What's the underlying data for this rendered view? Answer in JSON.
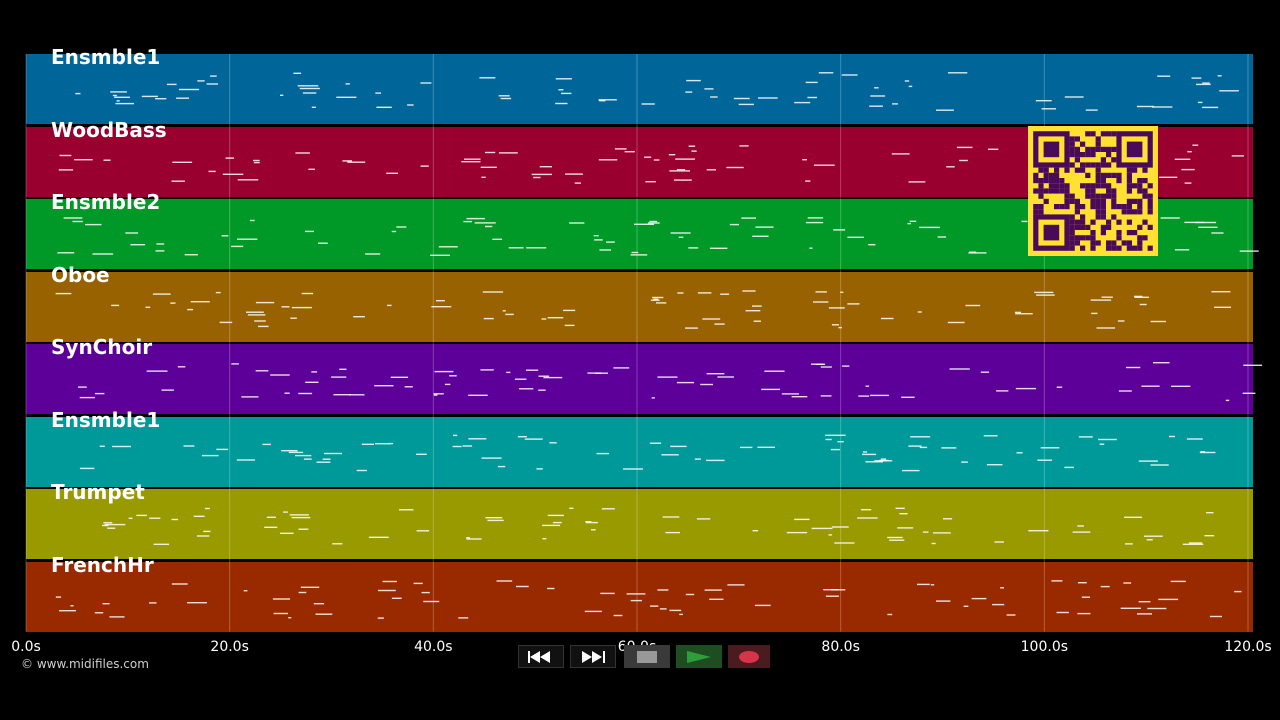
{
  "tracks": [
    {
      "name": "Ensmble1",
      "color": "#006699"
    },
    {
      "name": "WoodBass",
      "color": "#99002f"
    },
    {
      "name": "Ensmble2",
      "color": "#009928"
    },
    {
      "name": "Oboe",
      "color": "#996200"
    },
    {
      "name": "SynChoir",
      "color": "#5c0099"
    },
    {
      "name": "Ensmble1",
      "color": "#009999"
    },
    {
      "name": "Trumpet",
      "color": "#999900"
    },
    {
      "name": "FrenchHr",
      "color": "#992a00"
    }
  ],
  "timeline": {
    "labels": [
      "0.0s",
      "20.0s",
      "40.0s",
      "60.0s",
      "80.0s",
      "100.0s",
      "120.0s"
    ],
    "max_seconds": 120
  },
  "copyright": "© www.midifiles.com",
  "transport": {
    "rewind_icon": "rewind-icon",
    "fast_forward_icon": "fast-forward-icon",
    "stop_icon": "stop-icon",
    "play_icon": "play-icon",
    "record_icon": "record-icon",
    "play_color": "#2e9e3a",
    "record_color": "#d9334a"
  },
  "qr_colors": {
    "background": "#ffe033",
    "foreground": "#4a0a5a"
  }
}
